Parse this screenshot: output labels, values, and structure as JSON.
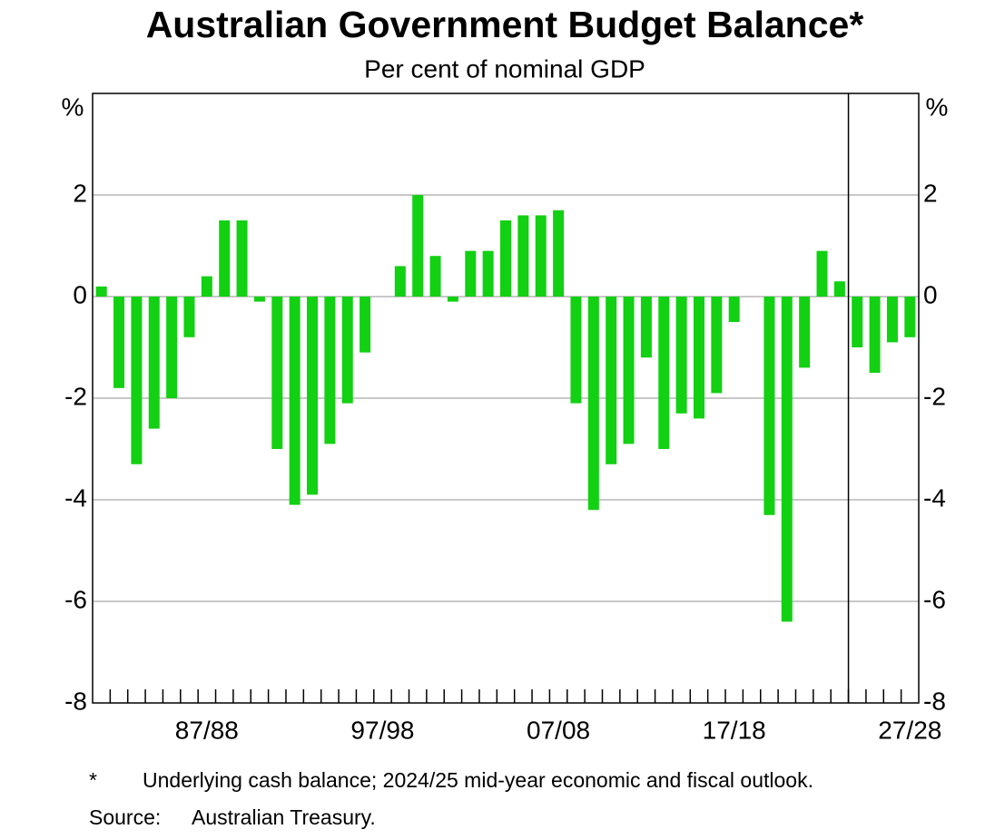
{
  "chart_data": {
    "type": "bar",
    "title": "Australian Government Budget Balance*",
    "subtitle": "Per cent of nominal GDP",
    "y_unit": "%",
    "categories": [
      null,
      null,
      null,
      null,
      null,
      null,
      "87/88",
      null,
      null,
      null,
      null,
      null,
      null,
      null,
      null,
      null,
      "97/98",
      null,
      null,
      null,
      null,
      null,
      null,
      null,
      null,
      null,
      "07/08",
      null,
      null,
      null,
      null,
      null,
      null,
      null,
      null,
      null,
      "17/18",
      null,
      null,
      null,
      null,
      null,
      null,
      null,
      null,
      null,
      "27/28"
    ],
    "values": [
      0.2,
      -1.8,
      -3.3,
      -2.6,
      -2.0,
      -0.8,
      0.4,
      1.5,
      1.5,
      -0.1,
      -3.0,
      -4.1,
      -3.9,
      -2.9,
      -2.1,
      -1.1,
      0,
      0.6,
      2.0,
      0.8,
      -0.1,
      0.9,
      0.9,
      1.5,
      1.6,
      1.6,
      1.7,
      -2.1,
      -4.2,
      -3.3,
      -2.9,
      -1.2,
      -3.0,
      -2.3,
      -2.4,
      -1.9,
      -0.5,
      0,
      -4.3,
      -6.4,
      -1.4,
      0.9,
      0.3,
      -1.0,
      -1.5,
      -0.9,
      -0.8
    ],
    "color": "#12d012",
    "ylim": [
      -8,
      4
    ],
    "yticks": [
      -8,
      -6,
      -4,
      -2,
      0,
      2
    ],
    "grid": true,
    "forecast_divider_index": 43,
    "notes": [
      [
        "*",
        "Underlying cash balance; 2024/25 mid-year economic and fiscal outlook."
      ],
      [
        "Source:",
        "Australian Treasury."
      ]
    ]
  }
}
